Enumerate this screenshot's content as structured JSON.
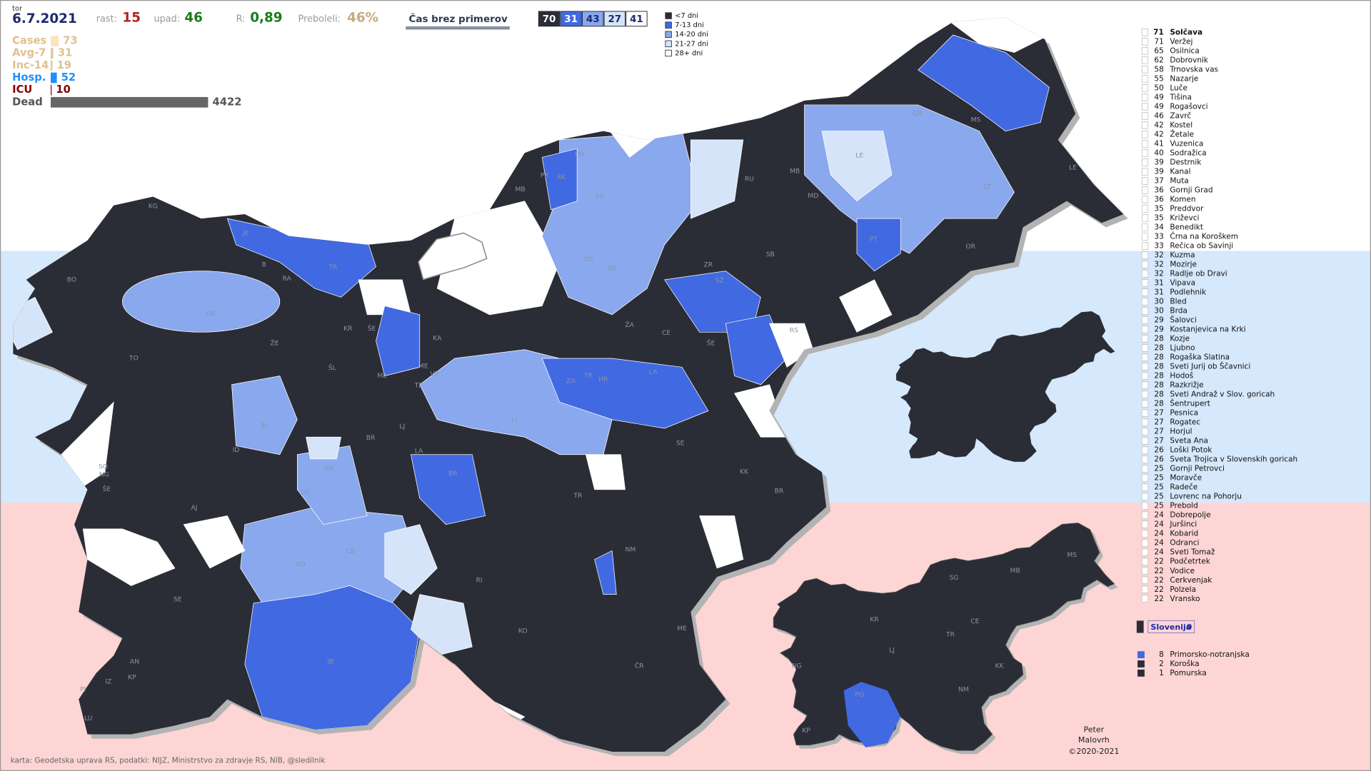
{
  "header": {
    "day": "tor",
    "date": "6.7.2021",
    "stats": [
      {
        "label": "rast:",
        "value": 15
      },
      {
        "label": "upad:",
        "value": 46
      },
      {
        "label": "R:",
        "value": "0,89"
      },
      {
        "label": "Preboleli:",
        "value": "46%"
      }
    ],
    "button": "Čas brez primerov"
  },
  "period_counts": [
    70,
    31,
    43,
    27,
    41
  ],
  "legend": [
    "<7 dni",
    "7-13 dni",
    "14-20 dni",
    "21-27 dni",
    "28+ dni"
  ],
  "indicators": [
    {
      "label": "Cases",
      "value": 73
    },
    {
      "label": "Avg-7",
      "value": 31
    },
    {
      "label": "Inc-14",
      "value": 19
    },
    {
      "label": "Hosp.",
      "value": 52
    },
    {
      "label": "ICU",
      "value": 10
    },
    {
      "label": "Dead",
      "value": 4422
    }
  ],
  "map": {
    "labels": [
      "KG",
      "BO",
      "JE",
      "B",
      "TR",
      "RA",
      "BB",
      "KR",
      "ŠE",
      "ŽE",
      "TO",
      "ŠL",
      "ME",
      "KA",
      "ME",
      "VR",
      "TZ",
      "DR",
      "MB",
      "PR",
      "RK",
      "SG",
      "ŠO",
      "VE",
      "RU",
      "MB",
      "MD",
      "GR",
      "MS",
      "LE",
      "LE",
      "LT",
      "PT",
      "OR",
      "SB",
      "ZR",
      "SŽ",
      "RS",
      "ŽA",
      "CE",
      "ŠE",
      "ZA",
      "TR",
      "HR",
      "LA",
      "LJ",
      "LI",
      "ŽI",
      "ID",
      "LA",
      "BR",
      "BR",
      "VR",
      "LO",
      "SE",
      "KK",
      "BR",
      "AJ",
      "ŠE",
      "SO",
      "NG",
      "TR",
      "NM",
      "PO",
      "CE",
      "RI",
      "SE",
      "IB",
      "KO",
      "ME",
      "ČR",
      "AN",
      "IZ",
      "KP",
      "PI",
      "LU"
    ],
    "inset_labels": [
      "SG",
      "MB",
      "MS",
      "KR",
      "CE",
      "TR",
      "LJ",
      "NG",
      "KK",
      "PO",
      "NM",
      "KP"
    ]
  },
  "municipalities": [
    {
      "days": 71,
      "name": "Solčava"
    },
    {
      "days": 71,
      "name": "Veržej"
    },
    {
      "days": 65,
      "name": "Osilnica"
    },
    {
      "days": 62,
      "name": "Dobrovnik"
    },
    {
      "days": 58,
      "name": "Trnovska vas"
    },
    {
      "days": 55,
      "name": "Nazarje"
    },
    {
      "days": 50,
      "name": "Luče"
    },
    {
      "days": 49,
      "name": "Tišina"
    },
    {
      "days": 49,
      "name": "Rogašovci"
    },
    {
      "days": 46,
      "name": "Zavrč"
    },
    {
      "days": 42,
      "name": "Kostel"
    },
    {
      "days": 42,
      "name": "Žetale"
    },
    {
      "days": 41,
      "name": "Vuzenica"
    },
    {
      "days": 40,
      "name": "Sodražica"
    },
    {
      "days": 39,
      "name": "Destrnik"
    },
    {
      "days": 39,
      "name": "Kanal"
    },
    {
      "days": 37,
      "name": "Muta"
    },
    {
      "days": 36,
      "name": "Gornji Grad"
    },
    {
      "days": 36,
      "name": "Komen"
    },
    {
      "days": 35,
      "name": "Preddvor"
    },
    {
      "days": 35,
      "name": "Križevci"
    },
    {
      "days": 34,
      "name": "Benedikt"
    },
    {
      "days": 33,
      "name": "Črna na Koroškem"
    },
    {
      "days": 33,
      "name": "Rečica ob Savinji"
    },
    {
      "days": 32,
      "name": "Kuzma"
    },
    {
      "days": 32,
      "name": "Mozirje"
    },
    {
      "days": 32,
      "name": "Radlje ob Dravi"
    },
    {
      "days": 31,
      "name": "Vipava"
    },
    {
      "days": 31,
      "name": "Podlehnik"
    },
    {
      "days": 30,
      "name": "Bled"
    },
    {
      "days": 30,
      "name": "Brda"
    },
    {
      "days": 29,
      "name": "Šalovci"
    },
    {
      "days": 29,
      "name": "Kostanjevica na Krki"
    },
    {
      "days": 28,
      "name": "Kozje"
    },
    {
      "days": 28,
      "name": "Ljubno"
    },
    {
      "days": 28,
      "name": "Rogaška Slatina"
    },
    {
      "days": 28,
      "name": "Sveti Jurij ob Ščavnici"
    },
    {
      "days": 28,
      "name": "Hodoš"
    },
    {
      "days": 28,
      "name": "Razkrižje"
    },
    {
      "days": 28,
      "name": "Sveti Andraž v Slov. goricah"
    },
    {
      "days": 28,
      "name": "Šentrupert"
    },
    {
      "days": 27,
      "name": "Pesnica"
    },
    {
      "days": 27,
      "name": "Rogatec"
    },
    {
      "days": 27,
      "name": "Horjul"
    },
    {
      "days": 27,
      "name": "Sveta Ana"
    },
    {
      "days": 26,
      "name": "Loški Potok"
    },
    {
      "days": 26,
      "name": "Sveta Trojica v Slovenskih goricah"
    },
    {
      "days": 25,
      "name": "Gornji Petrovci"
    },
    {
      "days": 25,
      "name": "Moravče"
    },
    {
      "days": 25,
      "name": "Radeče"
    },
    {
      "days": 25,
      "name": "Lovrenc na Pohorju"
    },
    {
      "days": 25,
      "name": "Prebold"
    },
    {
      "days": 24,
      "name": "Dobrepolje"
    },
    {
      "days": 24,
      "name": "Juršinci"
    },
    {
      "days": 24,
      "name": "Kobarid"
    },
    {
      "days": 24,
      "name": "Odranci"
    },
    {
      "days": 24,
      "name": "Sveti Tomaž"
    },
    {
      "days": 22,
      "name": "Podčetrtek"
    },
    {
      "days": 22,
      "name": "Vodice"
    },
    {
      "days": 22,
      "name": "Cerkvenjak"
    },
    {
      "days": 22,
      "name": "Polzela"
    },
    {
      "days": 22,
      "name": "Vransko"
    }
  ],
  "total": {
    "name": "Slovenija",
    "days": 0
  },
  "regions": [
    {
      "count": 8,
      "name": "Primorsko-notranjska"
    },
    {
      "count": 2,
      "name": "Koroška"
    },
    {
      "count": 1,
      "name": "Pomurska"
    }
  ],
  "author": [
    "Peter",
    "Malovrh",
    "©2020-2021"
  ],
  "footer": "karta: Geodetska uprava RS,  podatki: NIJZ, Ministrstvo za zdravje RS, NIB, @sledilnik"
}
